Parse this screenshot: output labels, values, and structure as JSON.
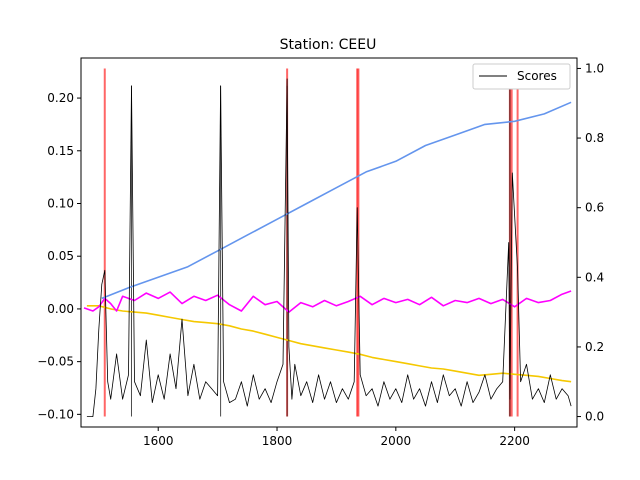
{
  "chart_data": {
    "type": "line",
    "title": "Station: CEEU",
    "xlabel": "",
    "ylabel": "",
    "xlim": [
      1470,
      2305
    ],
    "ylim_left": [
      -0.112,
      0.238
    ],
    "ylim_right": [
      -0.03,
      1.03
    ],
    "x_ticks": [
      1600,
      1800,
      2000,
      2200
    ],
    "y_ticks_left": [
      -0.1,
      -0.05,
      0.0,
      0.05,
      0.1,
      0.15,
      0.2
    ],
    "y_tick_labels_left": [
      "−0.10",
      "−0.05",
      "0.00",
      "0.05",
      "0.10",
      "0.15",
      "0.20"
    ],
    "y_ticks_right": [
      0.0,
      0.2,
      0.4,
      0.6,
      0.8,
      1.0
    ],
    "y_tick_labels_right": [
      "0.0",
      "0.2",
      "0.4",
      "0.6",
      "0.8",
      "1.0"
    ],
    "grid": false,
    "legend_position": "top-right",
    "legend": [
      {
        "label": "Scores",
        "color": "#000000"
      }
    ],
    "series": [
      {
        "name": "Scores",
        "axis": "right",
        "color": "#000000",
        "x": [
          1480,
          1490,
          1495,
          1500,
          1505,
          1510,
          1515,
          1520,
          1530,
          1540,
          1550,
          1555,
          1560,
          1570,
          1580,
          1590,
          1600,
          1610,
          1620,
          1630,
          1640,
          1650,
          1660,
          1670,
          1680,
          1690,
          1700,
          1705,
          1710,
          1720,
          1730,
          1740,
          1750,
          1760,
          1770,
          1780,
          1790,
          1800,
          1810,
          1817,
          1820,
          1825,
          1830,
          1840,
          1850,
          1860,
          1870,
          1880,
          1890,
          1900,
          1910,
          1920,
          1930,
          1935,
          1940,
          1950,
          1960,
          1970,
          1980,
          1990,
          2000,
          2010,
          2020,
          2030,
          2040,
          2050,
          2060,
          2070,
          2080,
          2090,
          2100,
          2110,
          2120,
          2130,
          2140,
          2150,
          2160,
          2170,
          2180,
          2190,
          2192,
          2196,
          2205,
          2210,
          2220,
          2230,
          2240,
          2250,
          2260,
          2270,
          2280,
          2290,
          2295
        ],
        "values": [
          0.0,
          0.0,
          0.08,
          0.25,
          0.38,
          0.42,
          0.1,
          0.05,
          0.18,
          0.05,
          0.12,
          0.95,
          0.1,
          0.06,
          0.22,
          0.04,
          0.12,
          0.05,
          0.18,
          0.08,
          0.28,
          0.06,
          0.15,
          0.05,
          0.1,
          0.08,
          0.06,
          0.95,
          0.1,
          0.04,
          0.05,
          0.1,
          0.03,
          0.12,
          0.05,
          0.08,
          0.04,
          0.1,
          0.15,
          0.97,
          0.2,
          0.05,
          0.15,
          0.06,
          0.1,
          0.04,
          0.12,
          0.05,
          0.1,
          0.04,
          0.08,
          0.05,
          0.1,
          0.6,
          0.12,
          0.06,
          0.08,
          0.03,
          0.1,
          0.05,
          0.08,
          0.04,
          0.12,
          0.05,
          0.08,
          0.03,
          0.1,
          0.04,
          0.12,
          0.06,
          0.08,
          0.03,
          0.1,
          0.04,
          0.07,
          0.12,
          0.05,
          0.08,
          0.1,
          0.5,
          0.05,
          0.7,
          0.42,
          0.1,
          0.15,
          0.05,
          0.08,
          0.04,
          0.12,
          0.05,
          0.08,
          0.06,
          0.03
        ]
      },
      {
        "name": "",
        "axis": "left",
        "color": "#6495ed",
        "x": [
          1505,
          1550,
          1600,
          1650,
          1700,
          1750,
          1800,
          1850,
          1900,
          1950,
          2000,
          2050,
          2100,
          2150,
          2200,
          2250,
          2295
        ],
        "values": [
          0.01,
          0.02,
          0.03,
          0.04,
          0.055,
          0.07,
          0.085,
          0.1,
          0.115,
          0.13,
          0.14,
          0.155,
          0.165,
          0.175,
          0.178,
          0.185,
          0.196
        ]
      },
      {
        "name": "",
        "axis": "left",
        "color": "#ff00ff",
        "x": [
          1475,
          1490,
          1500,
          1510,
          1520,
          1530,
          1540,
          1560,
          1580,
          1600,
          1620,
          1640,
          1660,
          1680,
          1700,
          1720,
          1740,
          1760,
          1780,
          1800,
          1820,
          1840,
          1860,
          1880,
          1900,
          1920,
          1940,
          1960,
          1980,
          2000,
          2020,
          2040,
          2060,
          2080,
          2100,
          2120,
          2140,
          2160,
          2180,
          2200,
          2220,
          2240,
          2260,
          2280,
          2295
        ],
        "values": [
          0.001,
          -0.002,
          0.002,
          0.01,
          0.005,
          -0.002,
          0.012,
          0.008,
          0.015,
          0.01,
          0.016,
          0.005,
          0.012,
          0.008,
          0.013,
          0.004,
          -0.002,
          0.012,
          0.004,
          0.007,
          -0.003,
          0.006,
          0.002,
          0.008,
          0.003,
          0.007,
          0.012,
          0.004,
          0.01,
          0.006,
          0.009,
          0.004,
          0.011,
          0.003,
          0.008,
          0.006,
          0.01,
          0.005,
          0.009,
          0.002,
          0.01,
          0.006,
          0.008,
          0.014,
          0.017
        ]
      },
      {
        "name": "",
        "axis": "left",
        "color": "#f5c800",
        "x": [
          1480,
          1500,
          1520,
          1540,
          1560,
          1580,
          1600,
          1620,
          1640,
          1660,
          1680,
          1700,
          1720,
          1740,
          1760,
          1780,
          1800,
          1820,
          1840,
          1860,
          1880,
          1900,
          1920,
          1940,
          1960,
          1980,
          2000,
          2020,
          2040,
          2060,
          2080,
          2100,
          2120,
          2140,
          2160,
          2180,
          2200,
          2220,
          2240,
          2260,
          2280,
          2295
        ],
        "values": [
          0.003,
          0.003,
          0.0,
          -0.002,
          -0.003,
          -0.004,
          -0.006,
          -0.008,
          -0.01,
          -0.012,
          -0.013,
          -0.014,
          -0.016,
          -0.019,
          -0.021,
          -0.024,
          -0.027,
          -0.03,
          -0.033,
          -0.035,
          -0.037,
          -0.039,
          -0.041,
          -0.043,
          -0.046,
          -0.048,
          -0.05,
          -0.052,
          -0.054,
          -0.056,
          -0.057,
          -0.059,
          -0.061,
          -0.063,
          -0.062,
          -0.061,
          -0.062,
          -0.063,
          -0.064,
          -0.066,
          -0.068,
          -0.069
        ]
      }
    ],
    "vlines_black": [
      1555,
      1705,
      1817,
      2192
    ],
    "vlines_red": [
      1510,
      1817,
      1935,
      1937,
      2192,
      2195,
      2205
    ]
  }
}
